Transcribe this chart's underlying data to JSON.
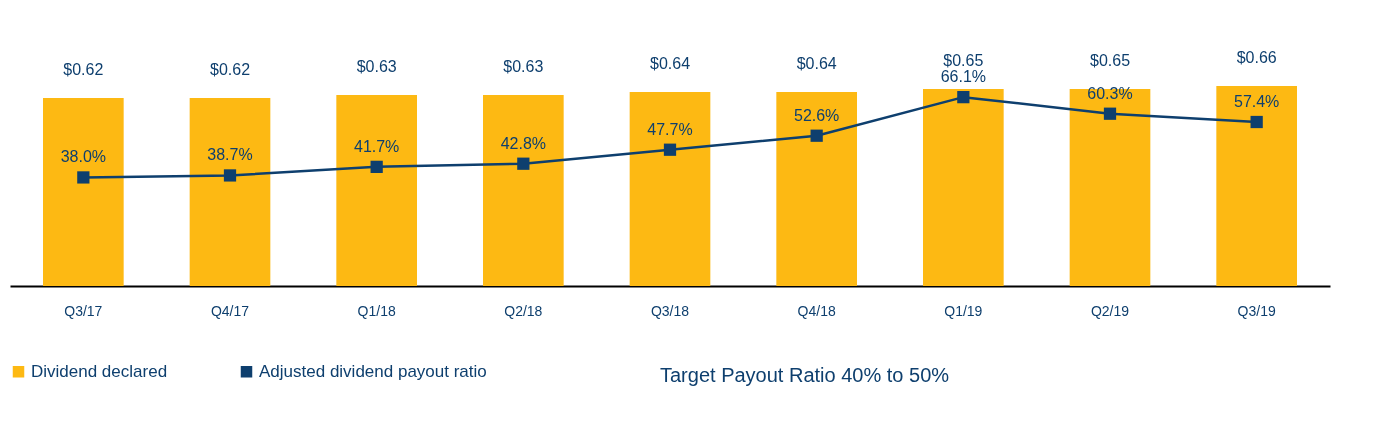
{
  "chart_data": {
    "type": "bar",
    "categories": [
      "Q3/17",
      "Q4/17",
      "Q1/18",
      "Q2/18",
      "Q3/18",
      "Q4/18",
      "Q1/19",
      "Q2/19",
      "Q3/19"
    ],
    "series": [
      {
        "name": "Dividend declared",
        "color": "#fdb913",
        "values": [
          0.62,
          0.62,
          0.63,
          0.63,
          0.64,
          0.64,
          0.65,
          0.65,
          0.66
        ],
        "value_labels": [
          "$0.62",
          "$0.62",
          "$0.63",
          "$0.63",
          "$0.64",
          "$0.64",
          "$0.65",
          "$0.65",
          "$0.66"
        ]
      },
      {
        "name": "Adjusted dividend payout ratio",
        "type": "line",
        "axis": "y2",
        "color": "#0e3f6e",
        "values": [
          38.0,
          38.7,
          41.7,
          42.8,
          47.7,
          52.6,
          66.1,
          60.3,
          57.4
        ],
        "value_labels": [
          "38.0%",
          "38.7%",
          "41.7%",
          "42.8%",
          "47.7%",
          "52.6%",
          "66.1%",
          "60.3%",
          "57.4%"
        ]
      }
    ],
    "marker": "square",
    "line_style": "solid",
    "legend": "bottom left",
    "grid": false,
    "annotations": [
      "Target Payout Ratio 40% to 50%"
    ]
  }
}
